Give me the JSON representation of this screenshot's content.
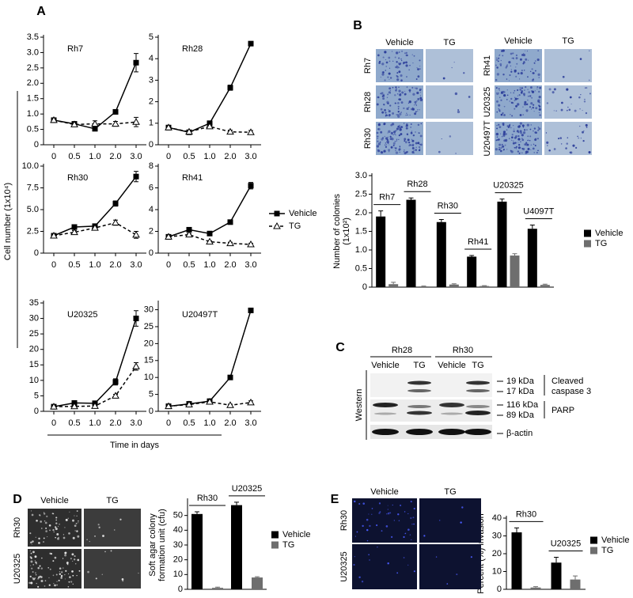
{
  "figure": {
    "panel_labels": [
      "A",
      "B",
      "C",
      "D",
      "E"
    ],
    "panel_a": {
      "ylabel": "Cell number (1x10⁴)",
      "xlabel": "Time in days"
    },
    "panel_b_images": {
      "headers": [
        "Vehicle",
        "TG"
      ],
      "rows_left": [
        "Rh7",
        "Rh28",
        "Rh30"
      ],
      "rows_right": [
        "Rh41",
        "U20325",
        "U20497T"
      ]
    },
    "panel_c": {
      "cell_lines": [
        "Rh28",
        "Rh30"
      ],
      "lanes": [
        "Vehicle",
        "TG",
        "Vehicle",
        "TG"
      ],
      "side_label": "Western",
      "markers": [
        "19 kDa",
        "17 kDa",
        "116 kDa",
        "89 kDa"
      ],
      "caspase": [
        "Cleaved",
        "caspase 3"
      ],
      "parp": "PARP",
      "actin": "β-actin"
    },
    "panel_d_images": {
      "headers": [
        "Vehicle",
        "TG"
      ],
      "rows": [
        "Rh30",
        "U20325"
      ]
    },
    "panel_e_images": {
      "headers": [
        "Vehicle",
        "TG"
      ],
      "rows": [
        "Rh30",
        "U20325"
      ]
    }
  },
  "chart_data": [
    {
      "type": "line",
      "title": "Rh7",
      "categories": [
        "0",
        "0.5",
        "1.0",
        "2.0",
        "3.0"
      ],
      "ylim": [
        0,
        3.5
      ],
      "yticks": [
        0,
        0.5,
        {
          "value": 1,
          "label": "1.0"
        },
        1.5,
        {
          "value": 2,
          "label": "2.0"
        },
        2.5,
        {
          "value": 3,
          "label": "3.0"
        },
        3.5
      ],
      "legend": true,
      "series": [
        {
          "name": "Vehicle",
          "color": "#000000",
          "line_style": "solid",
          "marker": "square",
          "values": [
            0.8,
            0.68,
            0.52,
            1.07,
            2.67
          ],
          "errors": [
            0.03,
            0.03,
            0.05,
            0.05,
            0.3
          ]
        },
        {
          "name": "TG",
          "color": "#000000",
          "line_style": "dashed",
          "marker": "triangle",
          "values": [
            0.8,
            0.66,
            0.68,
            0.68,
            0.74
          ],
          "errors": [
            0.03,
            0.05,
            0.1,
            0.08,
            0.15
          ]
        }
      ]
    },
    {
      "type": "line",
      "title": "Rh28",
      "categories": [
        "0",
        "0.5",
        "1.0",
        "2.0",
        "3.0"
      ],
      "ylim": [
        0,
        5
      ],
      "yticks": [
        0,
        1,
        2,
        3,
        4,
        5
      ],
      "series": [
        {
          "name": "Vehicle",
          "color": "#000000",
          "line_style": "solid",
          "marker": "square",
          "values": [
            0.8,
            0.58,
            1.0,
            2.65,
            4.7
          ],
          "errors": [
            0.05,
            0.05,
            0.1,
            0.12,
            0.1
          ]
        },
        {
          "name": "TG",
          "color": "#000000",
          "line_style": "dashed",
          "marker": "triangle",
          "values": [
            0.8,
            0.6,
            0.85,
            0.6,
            0.58
          ],
          "errors": [
            0.05,
            0.05,
            0.08,
            0.08,
            0.08
          ]
        }
      ]
    },
    {
      "type": "line",
      "title": "Rh30",
      "categories": [
        "0",
        "0.5",
        "1.0",
        "2.0",
        "3.0"
      ],
      "ylim": [
        0,
        10
      ],
      "yticks": [
        0,
        2.5,
        {
          "value": 5,
          "label": "5.0"
        },
        7.5,
        {
          "value": 10,
          "label": "10.0"
        }
      ],
      "series": [
        {
          "name": "Vehicle",
          "color": "#000000",
          "line_style": "solid",
          "marker": "square",
          "values": [
            2.0,
            3.0,
            3.1,
            5.7,
            8.8
          ],
          "errors": [
            0.15,
            0.2,
            0.2,
            0.3,
            0.6
          ]
        },
        {
          "name": "TG",
          "color": "#000000",
          "line_style": "dashed",
          "marker": "triangle",
          "values": [
            2.0,
            2.4,
            2.9,
            3.5,
            2.1
          ],
          "errors": [
            0.1,
            0.2,
            0.2,
            0.3,
            0.4
          ]
        }
      ]
    },
    {
      "type": "line",
      "title": "Rh41",
      "categories": [
        "0",
        "0.5",
        "1.0",
        "2.0",
        "3.0"
      ],
      "ylim": [
        0,
        8
      ],
      "yticks": [
        0,
        2,
        4,
        6,
        8
      ],
      "series": [
        {
          "name": "Vehicle",
          "color": "#000000",
          "line_style": "solid",
          "marker": "square",
          "values": [
            1.5,
            2.15,
            1.8,
            2.85,
            6.2
          ],
          "errors": [
            0.1,
            0.1,
            0.1,
            0.1,
            0.3
          ]
        },
        {
          "name": "TG",
          "color": "#000000",
          "line_style": "dashed",
          "marker": "triangle",
          "values": [
            1.5,
            1.7,
            1.05,
            0.9,
            0.8
          ],
          "errors": [
            0.1,
            0.1,
            0.1,
            0.1,
            0.1
          ]
        }
      ]
    },
    {
      "type": "line",
      "title": "U20325",
      "categories": [
        "0",
        "0.5",
        "1.0",
        "2.0",
        "3.0"
      ],
      "ylim": [
        0,
        35
      ],
      "yticks": [
        0,
        5,
        10,
        15,
        20,
        25,
        30,
        35
      ],
      "series": [
        {
          "name": "Vehicle",
          "color": "#000000",
          "line_style": "solid",
          "marker": "square",
          "values": [
            1.5,
            2.7,
            2.6,
            9.5,
            30
          ],
          "errors": [
            0.5,
            0.5,
            0.5,
            1,
            2.5
          ]
        },
        {
          "name": "TG",
          "color": "#000000",
          "line_style": "dashed",
          "marker": "triangle",
          "values": [
            1.5,
            1.6,
            1.7,
            5.0,
            14.5
          ],
          "errors": [
            0.3,
            0.3,
            0.3,
            0.5,
            1.2
          ]
        }
      ]
    },
    {
      "type": "line",
      "title": "U20497T",
      "categories": [
        "0",
        "0.5",
        "1.0",
        "2.0",
        "3.0"
      ],
      "ylim": [
        0,
        32
      ],
      "yticks": [
        0,
        5,
        10,
        15,
        20,
        25,
        30
      ],
      "series": [
        {
          "name": "Vehicle",
          "color": "#000000",
          "line_style": "solid",
          "marker": "square",
          "values": [
            1.5,
            2.2,
            3.0,
            10,
            29.8
          ],
          "errors": [
            0.3,
            0.3,
            0.3,
            0.4,
            0.5
          ]
        },
        {
          "name": "TG",
          "color": "#000000",
          "line_style": "dashed",
          "marker": "triangle",
          "values": [
            1.5,
            2.0,
            2.8,
            1.8,
            2.6
          ],
          "errors": [
            0.3,
            0.3,
            0.3,
            0.3,
            0.5
          ]
        }
      ]
    },
    {
      "type": "bar",
      "ylabel": [
        "Number of colonies",
        "(1x10²)"
      ],
      "categories": [
        "Rh7",
        "Rh28",
        "Rh30",
        "Rh41",
        "U20325",
        "U4097T"
      ],
      "ylim": [
        0,
        3
      ],
      "yticks": [
        0,
        0.5,
        {
          "value": 1,
          "label": "1.0"
        },
        1.5,
        {
          "value": 2,
          "label": "2.0"
        },
        2.5,
        {
          "value": 3,
          "label": "3.0"
        }
      ],
      "series": [
        {
          "name": "Vehicle",
          "color": "#000000",
          "values": [
            1.9,
            2.35,
            1.75,
            0.82,
            2.3,
            1.57
          ],
          "errors": [
            0.15,
            0.05,
            0.07,
            0.03,
            0.07,
            0.1
          ]
        },
        {
          "name": "TG",
          "color": "#6e6e6e",
          "values": [
            0.08,
            0.02,
            0.07,
            0.03,
            0.85,
            0.06
          ],
          "errors": [
            0.05,
            0.01,
            0.02,
            0.01,
            0.05,
            0.02
          ]
        }
      ]
    },
    {
      "type": "bar",
      "ylabel": [
        "Soft agar colony",
        "formation unit (cfu)"
      ],
      "categories": [
        "Rh30",
        "U20325"
      ],
      "ylim": [
        0,
        60
      ],
      "yticks": [
        0,
        10,
        20,
        30,
        40,
        50
      ],
      "series": [
        {
          "name": "Vehicle",
          "color": "#000000",
          "values": [
            51,
            57
          ],
          "errors": [
            1.5,
            2
          ]
        },
        {
          "name": "TG",
          "color": "#6e6e6e",
          "values": [
            1,
            8
          ],
          "errors": [
            0.5,
            0.5
          ]
        }
      ]
    },
    {
      "type": "bar",
      "ylabel": [
        "Percent (%) invasion"
      ],
      "categories": [
        "Rh30",
        "U20325"
      ],
      "ylim": [
        0,
        40
      ],
      "yticks": [
        0,
        10,
        20,
        30,
        40
      ],
      "series": [
        {
          "name": "Vehicle",
          "color": "#000000",
          "values": [
            32,
            15
          ],
          "errors": [
            2.5,
            3
          ]
        },
        {
          "name": "TG",
          "color": "#6e6e6e",
          "values": [
            1,
            5.5
          ],
          "errors": [
            0.5,
            2
          ]
        }
      ]
    }
  ]
}
